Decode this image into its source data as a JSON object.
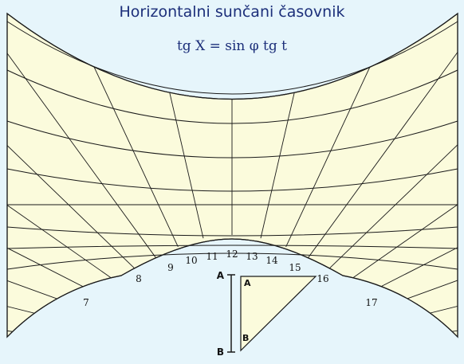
{
  "title": "Horizontalni sunčani časovnik",
  "formula": "tg X = sin φ tg t",
  "hour_labels": [
    "7",
    "8",
    "9",
    "10",
    "11",
    "12",
    "13",
    "14",
    "15",
    "16",
    "17"
  ],
  "gnomon": {
    "vertex_top": "A",
    "vertex_bottom": "B",
    "end_top": "A",
    "end_bottom": "B"
  },
  "colors": {
    "background": "#e6f5fb",
    "dial_fill": "#fbfbdc",
    "line": "#1a1a1a",
    "title": "#1c2f7a"
  }
}
